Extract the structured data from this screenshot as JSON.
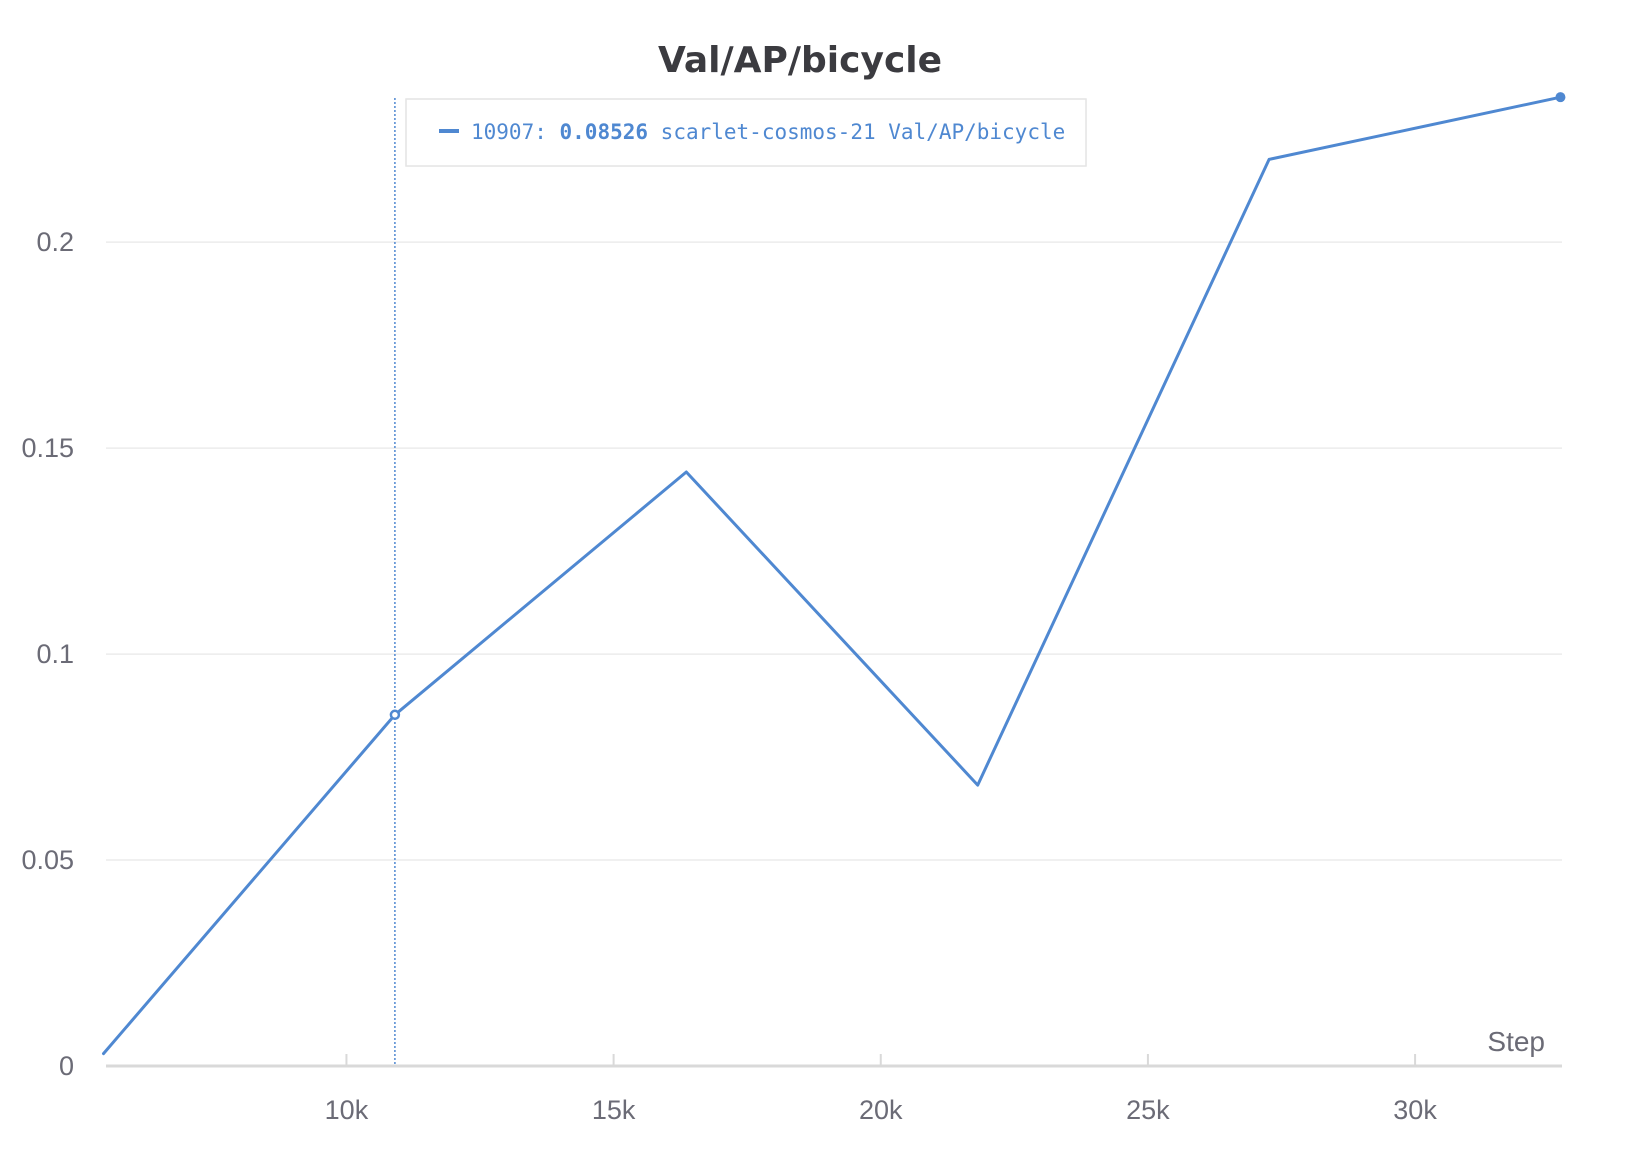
{
  "chart_data": {
    "type": "line",
    "title": "Val/AP/bicycle",
    "xlabel": "Step",
    "ylabel": "",
    "xlim": [
      5500,
      32750
    ],
    "ylim": [
      0,
      0.235
    ],
    "x_ticks": [
      {
        "value": 10000,
        "label": "10k"
      },
      {
        "value": 15000,
        "label": "15k"
      },
      {
        "value": 20000,
        "label": "20k"
      },
      {
        "value": 25000,
        "label": "25k"
      },
      {
        "value": 30000,
        "label": "30k"
      }
    ],
    "y_ticks": [
      {
        "value": 0,
        "label": "0"
      },
      {
        "value": 0.05,
        "label": "0.05"
      },
      {
        "value": 0.1,
        "label": "0.1"
      },
      {
        "value": 0.15,
        "label": "0.15"
      },
      {
        "value": 0.2,
        "label": "0.2"
      }
    ],
    "grid": true,
    "series": [
      {
        "name": "scarlet-cosmos-21 Val/AP/bicycle",
        "color": "#4f88d1",
        "x": [
          5453,
          10907,
          16360,
          21814,
          27268,
          32721
        ],
        "y": [
          0.003,
          0.08526,
          0.1442,
          0.0682,
          0.2201,
          0.2352
        ]
      }
    ],
    "hover": {
      "x": 10907,
      "step_label": "10907:",
      "value_label": "0.08526",
      "series_label": "scarlet-cosmos-21 Val/AP/bicycle"
    },
    "last_point_marker": true
  },
  "colors": {
    "line": "#4f88d1",
    "grid": "#ececec",
    "axis": "#d9d9d9",
    "text": "#6b6b76",
    "title": "#3b3b40"
  }
}
